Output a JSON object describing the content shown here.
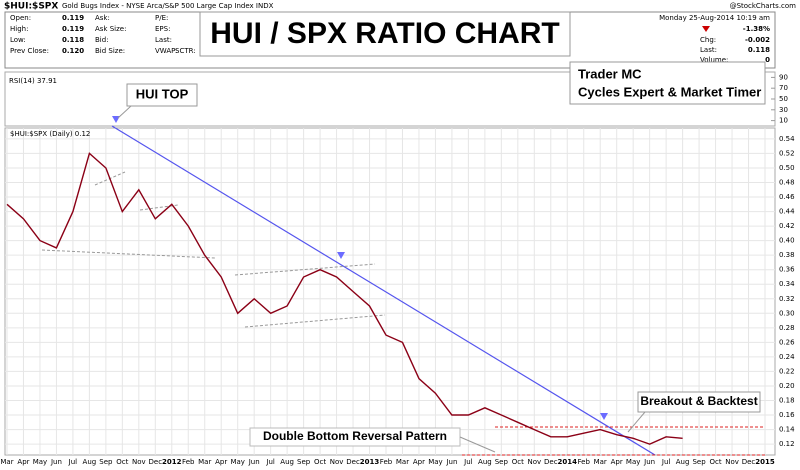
{
  "page": {
    "symbol": "$HUI:$SPX",
    "description": "Gold Bugs Index - NYSE Arca/S&P 500 Large Cap Index INDX",
    "source": "@StockCharts.com",
    "quote": [
      [
        "Open:",
        "0.119"
      ],
      [
        "High:",
        "0.119"
      ],
      [
        "Low:",
        "0.118"
      ],
      [
        "Prev Close:",
        "0.120"
      ]
    ],
    "quote_labels": [
      [
        "Ask:",
        "Ask Size:",
        "Bid:",
        "Bid Size:"
      ],
      [
        "P/E:",
        "EPS:",
        "Last:",
        "VWAP:"
      ],
      [
        "SCTR:"
      ]
    ],
    "date": "Monday  25-Aug-2014  10:19 am",
    "change_pct": "-1.38%",
    "chg_label": "Chg:",
    "chg": "-0.002",
    "last_label": "Last:",
    "last": "0.118",
    "volume_label": "Volume:",
    "volume": "0",
    "banner": "HUI / SPX RATIO CHART",
    "author": [
      "Trader MC",
      "Cycles Expert & Market Timer"
    ]
  },
  "rsi_panel": {
    "label": "RSI(14) 37.91",
    "ylim": [
      0,
      100
    ],
    "yticks": [
      90,
      70,
      50,
      30,
      10
    ]
  },
  "chart_data": {
    "type": "line",
    "legend_label": "$HUI:$SPX (Daily) 0.12",
    "annotations": [
      "HUI TOP",
      "Double Bottom Reversal Pattern",
      "Breakout & Backtest"
    ],
    "x": [
      "2011-03",
      "2011-04",
      "2011-05",
      "2011-06",
      "2011-07",
      "2011-08",
      "2011-09",
      "2011-10",
      "2011-11",
      "2011-12",
      "2012-01",
      "2012-02",
      "2012-03",
      "2012-04",
      "2012-05",
      "2012-06",
      "2012-07",
      "2012-08",
      "2012-09",
      "2012-10",
      "2012-11",
      "2012-12",
      "2013-01",
      "2013-02",
      "2013-03",
      "2013-04",
      "2013-05",
      "2013-06",
      "2013-07",
      "2013-08",
      "2013-09",
      "2013-10",
      "2013-11",
      "2013-12",
      "2014-01",
      "2014-02",
      "2014-03",
      "2014-04",
      "2014-05",
      "2014-06",
      "2014-07",
      "2014-08"
    ],
    "series": [
      {
        "name": "$HUI:$SPX",
        "color": "#8b0016",
        "values": [
          0.45,
          0.43,
          0.4,
          0.39,
          0.44,
          0.52,
          0.5,
          0.44,
          0.47,
          0.43,
          0.45,
          0.42,
          0.38,
          0.35,
          0.3,
          0.32,
          0.3,
          0.31,
          0.35,
          0.36,
          0.35,
          0.33,
          0.31,
          0.27,
          0.26,
          0.21,
          0.19,
          0.16,
          0.16,
          0.17,
          0.16,
          0.15,
          0.14,
          0.13,
          0.13,
          0.135,
          0.14,
          0.133,
          0.128,
          0.12,
          0.13,
          0.128
        ]
      }
    ],
    "xlim": [
      "2011-03",
      "2015-01"
    ],
    "xticks": [
      {
        "value": "2011-03",
        "label": "Mar"
      },
      {
        "value": "2011-04",
        "label": "Apr"
      },
      {
        "value": "2011-05",
        "label": "May"
      },
      {
        "value": "2011-06",
        "label": "Jun"
      },
      {
        "value": "2011-07",
        "label": "Jul"
      },
      {
        "value": "2011-08",
        "label": "Aug"
      },
      {
        "value": "2011-09",
        "label": "Sep"
      },
      {
        "value": "2011-10",
        "label": "Oct"
      },
      {
        "value": "2011-11",
        "label": "Nov"
      },
      {
        "value": "2011-12",
        "label": "Dec"
      },
      {
        "value": "2012-01",
        "label": "2012"
      },
      {
        "value": "2012-02",
        "label": "Feb"
      },
      {
        "value": "2012-03",
        "label": "Mar"
      },
      {
        "value": "2012-04",
        "label": "Apr"
      },
      {
        "value": "2012-05",
        "label": "May"
      },
      {
        "value": "2012-06",
        "label": "Jun"
      },
      {
        "value": "2012-07",
        "label": "Jul"
      },
      {
        "value": "2012-08",
        "label": "Aug"
      },
      {
        "value": "2012-09",
        "label": "Sep"
      },
      {
        "value": "2012-10",
        "label": "Oct"
      },
      {
        "value": "2012-11",
        "label": "Nov"
      },
      {
        "value": "2012-12",
        "label": "Dec"
      },
      {
        "value": "2013-01",
        "label": "2013"
      },
      {
        "value": "2013-02",
        "label": "Feb"
      },
      {
        "value": "2013-03",
        "label": "Mar"
      },
      {
        "value": "2013-04",
        "label": "Apr"
      },
      {
        "value": "2013-05",
        "label": "May"
      },
      {
        "value": "2013-06",
        "label": "Jun"
      },
      {
        "value": "2013-07",
        "label": "Jul"
      },
      {
        "value": "2013-08",
        "label": "Aug"
      },
      {
        "value": "2013-09",
        "label": "Sep"
      },
      {
        "value": "2013-10",
        "label": "Oct"
      },
      {
        "value": "2013-11",
        "label": "Nov"
      },
      {
        "value": "2013-12",
        "label": "Dec"
      },
      {
        "value": "2014-01",
        "label": "2014"
      },
      {
        "value": "2014-02",
        "label": "Feb"
      },
      {
        "value": "2014-03",
        "label": "Mar"
      },
      {
        "value": "2014-04",
        "label": "Apr"
      },
      {
        "value": "2014-05",
        "label": "May"
      },
      {
        "value": "2014-06",
        "label": "Jun"
      },
      {
        "value": "2014-07",
        "label": "Jul"
      },
      {
        "value": "2014-08",
        "label": "Aug"
      },
      {
        "value": "2014-09",
        "label": "Sep"
      },
      {
        "value": "2014-10",
        "label": "Oct"
      },
      {
        "value": "2014-11",
        "label": "Nov"
      },
      {
        "value": "2014-12",
        "label": "Dec"
      },
      {
        "value": "2015-01",
        "label": "2015"
      }
    ],
    "ylim": [
      0.105,
      0.555
    ],
    "yticks": [
      0.12,
      0.14,
      0.16,
      0.18,
      {
        "value": 0.2,
        "label": "0.20"
      },
      0.22,
      0.24,
      0.26,
      0.28,
      {
        "value": 0.3,
        "label": "0.30"
      },
      0.32,
      0.34,
      0.36,
      0.38,
      {
        "value": 0.4,
        "label": "0.40"
      },
      0.42,
      0.44,
      0.46,
      0.48,
      {
        "value": 0.5,
        "label": "0.50"
      },
      0.52,
      0.54
    ],
    "grid": true
  }
}
